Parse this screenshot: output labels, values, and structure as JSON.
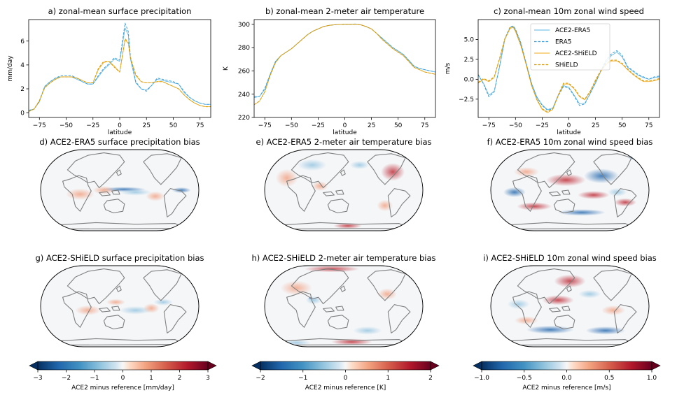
{
  "colors": {
    "ace_era5": "#5ab4e5",
    "era5": "#3aa0dd",
    "ace_shield": "#f0a818",
    "shield": "#d89a00",
    "coast": "#808080"
  },
  "chart_data": [
    {
      "id": "a",
      "type": "line",
      "title": "a) zonal-mean surface precipitation",
      "xlabel": "latitude",
      "ylabel": "mm/day",
      "xlim": [
        -85,
        85
      ],
      "ylim": [
        -0.4,
        7.8
      ],
      "xticks": [
        -75,
        -50,
        -25,
        0,
        25,
        50,
        75
      ],
      "yticks": [
        0,
        2,
        4,
        6
      ],
      "x": [
        -85,
        -80,
        -75,
        -70,
        -65,
        -60,
        -55,
        -50,
        -45,
        -40,
        -35,
        -30,
        -25,
        -20,
        -15,
        -10,
        -5,
        0,
        5,
        8,
        10,
        15,
        20,
        25,
        30,
        35,
        40,
        45,
        50,
        55,
        60,
        65,
        70,
        75,
        80,
        85
      ],
      "series": [
        {
          "name": "ACE2-ERA5",
          "style": "solid",
          "values": [
            0.2,
            0.3,
            0.9,
            2.2,
            2.6,
            2.9,
            3.0,
            3.0,
            3.0,
            2.8,
            2.6,
            2.4,
            2.4,
            3.0,
            3.6,
            4.0,
            4.5,
            4.3,
            7.1,
            6.5,
            4.5,
            2.5,
            2.0,
            1.9,
            2.3,
            2.8,
            2.7,
            2.6,
            2.5,
            2.4,
            1.7,
            1.3,
            1.0,
            0.8,
            0.7,
            0.7
          ]
        },
        {
          "name": "ERA5",
          "style": "dashed",
          "values": [
            0.2,
            0.3,
            1.0,
            2.2,
            2.6,
            2.9,
            3.1,
            3.1,
            3.1,
            2.9,
            2.6,
            2.4,
            2.4,
            3.1,
            3.7,
            4.1,
            4.6,
            4.4,
            7.5,
            6.8,
            4.7,
            2.6,
            2.0,
            1.8,
            2.3,
            2.9,
            2.8,
            2.7,
            2.6,
            2.4,
            1.8,
            1.3,
            1.0,
            0.8,
            0.7,
            0.7
          ]
        },
        {
          "name": "ACE2-SHiELD",
          "style": "solid",
          "values": [
            0.1,
            0.3,
            1.0,
            2.1,
            2.5,
            2.8,
            3.0,
            3.0,
            3.0,
            2.9,
            2.7,
            2.5,
            2.5,
            3.6,
            4.2,
            4.3,
            3.9,
            3.4,
            6.1,
            5.8,
            4.6,
            3.1,
            2.6,
            2.5,
            2.5,
            2.6,
            2.6,
            2.4,
            2.2,
            2.0,
            1.5,
            1.1,
            0.8,
            0.6,
            0.5,
            0.5
          ]
        },
        {
          "name": "SHiELD",
          "style": "dashed",
          "values": [
            0.1,
            0.3,
            1.0,
            2.1,
            2.5,
            2.8,
            3.0,
            3.0,
            3.0,
            2.9,
            2.7,
            2.5,
            2.5,
            3.7,
            4.3,
            4.3,
            3.8,
            3.4,
            6.2,
            5.9,
            4.6,
            3.2,
            2.6,
            2.5,
            2.5,
            2.6,
            2.6,
            2.4,
            2.2,
            2.0,
            1.5,
            1.1,
            0.8,
            0.6,
            0.5,
            0.5
          ]
        }
      ]
    },
    {
      "id": "b",
      "type": "line",
      "title": "b) zonal-mean 2-meter air temperature",
      "xlabel": "latitude",
      "ylabel": "K",
      "xlim": [
        -85,
        85
      ],
      "ylim": [
        220,
        304
      ],
      "xticks": [
        -75,
        -50,
        -25,
        0,
        25,
        50,
        75
      ],
      "yticks": [
        220,
        240,
        260,
        280,
        300
      ],
      "x": [
        -85,
        -80,
        -75,
        -70,
        -65,
        -60,
        -55,
        -50,
        -45,
        -40,
        -35,
        -30,
        -25,
        -20,
        -15,
        -10,
        -5,
        0,
        5,
        10,
        15,
        20,
        25,
        30,
        35,
        40,
        45,
        50,
        55,
        60,
        65,
        70,
        75,
        80,
        85
      ],
      "series": [
        {
          "name": "ACE2-ERA5",
          "style": "solid",
          "values": [
            237,
            238,
            244,
            257,
            268,
            273,
            276,
            279,
            283,
            287,
            291,
            294,
            296,
            298,
            299,
            299.5,
            299.8,
            300,
            300,
            300,
            299.5,
            298,
            296,
            292,
            288,
            284,
            280,
            277,
            274,
            269,
            264,
            262,
            261,
            260,
            259
          ]
        },
        {
          "name": "ERA5",
          "style": "dashed",
          "values": [
            238,
            238,
            245,
            257,
            268,
            273,
            276,
            279,
            283,
            287,
            291,
            294,
            296,
            298,
            299,
            299.5,
            299.8,
            300,
            300,
            300.2,
            299.5,
            298,
            296,
            292,
            288,
            284,
            280,
            277,
            274,
            269,
            264,
            262,
            261,
            260,
            259
          ]
        },
        {
          "name": "ACE2-SHiELD",
          "style": "solid",
          "values": [
            231,
            234,
            242,
            256,
            267,
            273,
            276,
            279,
            283,
            287,
            291,
            294,
            296,
            298,
            299,
            299.5,
            299.8,
            300,
            300,
            300,
            299.5,
            298,
            296,
            292,
            287,
            283,
            279,
            276,
            273,
            268,
            263,
            261,
            259,
            258,
            257
          ]
        },
        {
          "name": "SHiELD",
          "style": "dashed",
          "values": [
            231,
            234,
            242,
            256,
            267,
            273,
            276,
            279,
            283,
            287,
            291,
            294,
            296,
            298,
            299,
            299.5,
            299.8,
            300,
            300,
            300,
            299.5,
            298,
            296,
            292,
            287,
            283,
            279,
            276,
            273,
            268,
            263,
            261,
            259,
            258,
            257
          ]
        }
      ]
    },
    {
      "id": "c",
      "type": "line",
      "title": "c) zonal-mean 10m zonal wind speed",
      "xlabel": "latitude",
      "ylabel": "m/s",
      "xlim": [
        -85,
        85
      ],
      "ylim": [
        -4.8,
        7.5
      ],
      "xticks": [
        -75,
        -50,
        -25,
        0,
        25,
        50,
        75
      ],
      "yticks": [
        -2.5,
        0.0,
        2.5,
        5.0
      ],
      "ytick_labels": [
        "−2.5",
        "0.0",
        "2.5",
        "5.0"
      ],
      "legend": "upper-right",
      "x": [
        -85,
        -80,
        -75,
        -70,
        -65,
        -60,
        -55,
        -52,
        -50,
        -45,
        -40,
        -35,
        -30,
        -25,
        -20,
        -15,
        -10,
        -5,
        0,
        5,
        10,
        15,
        20,
        25,
        30,
        35,
        40,
        45,
        50,
        55,
        60,
        65,
        70,
        75,
        80,
        85
      ],
      "series": [
        {
          "name": "ACE2-ERA5",
          "style": "solid",
          "values": [
            0.5,
            -0.5,
            -2.0,
            -1.5,
            1.5,
            5.0,
            6.5,
            6.6,
            6.2,
            4.5,
            2.0,
            -0.5,
            -2.2,
            -3.2,
            -3.8,
            -3.6,
            -2.0,
            -0.8,
            -1.0,
            -2.0,
            -3.1,
            -3.0,
            -1.8,
            -0.5,
            1.0,
            2.2,
            3.0,
            3.4,
            2.8,
            1.5,
            1.0,
            0.5,
            0.2,
            0.0,
            0.2,
            0.3
          ]
        },
        {
          "name": "ERA5",
          "style": "dashed",
          "values": [
            0.6,
            -0.6,
            -2.2,
            -1.6,
            1.6,
            5.1,
            6.6,
            6.7,
            6.3,
            4.6,
            2.0,
            -0.5,
            -2.3,
            -3.3,
            -3.9,
            -3.7,
            -2.1,
            -0.9,
            -1.1,
            -2.1,
            -3.3,
            -3.1,
            -1.8,
            -0.4,
            1.1,
            2.4,
            3.2,
            3.6,
            3.0,
            1.6,
            1.1,
            0.6,
            0.3,
            0.0,
            0.3,
            0.4
          ]
        },
        {
          "name": "ACE2-SHiELD",
          "style": "solid",
          "values": [
            -0.5,
            0.0,
            -0.3,
            0.2,
            2.5,
            5.0,
            6.4,
            6.5,
            6.0,
            4.2,
            1.8,
            -0.8,
            -2.6,
            -3.8,
            -4.2,
            -3.8,
            -2.1,
            -0.6,
            -0.6,
            -1.2,
            -2.2,
            -2.6,
            -1.6,
            -0.2,
            1.0,
            1.9,
            2.3,
            2.3,
            1.9,
            1.2,
            0.6,
            0.1,
            -0.3,
            -0.3,
            -0.2,
            0.0
          ]
        },
        {
          "name": "SHiELD",
          "style": "dashed",
          "values": [
            -0.4,
            0.1,
            -0.2,
            0.3,
            2.6,
            5.1,
            6.5,
            6.6,
            6.1,
            4.3,
            1.9,
            -0.7,
            -2.5,
            -3.7,
            -4.1,
            -3.7,
            -2.0,
            -0.5,
            -0.5,
            -1.1,
            -2.1,
            -2.5,
            -1.5,
            -0.1,
            1.1,
            2.0,
            2.4,
            2.4,
            2.0,
            1.3,
            0.7,
            0.2,
            -0.2,
            -0.2,
            -0.1,
            0.1
          ]
        }
      ]
    },
    {
      "id": "d",
      "type": "heatmap",
      "title": "d) ACE2-ERA5 surface precipitation bias",
      "colorscale": "RdBu_r"
    },
    {
      "id": "e",
      "type": "heatmap",
      "title": "e) ACE2-ERA5 2-meter air temperature bias",
      "colorscale": "RdBu_r"
    },
    {
      "id": "f",
      "type": "heatmap",
      "title": "f) ACE2-ERA5 10m zonal wind speed bias",
      "colorscale": "RdBu_r"
    },
    {
      "id": "g",
      "type": "heatmap",
      "title": "g) ACE2-SHiELD surface precipitation bias",
      "colorscale": "RdBu_r"
    },
    {
      "id": "h",
      "type": "heatmap",
      "title": "h) ACE2-SHiELD 2-meter air temperature bias",
      "colorscale": "RdBu_r"
    },
    {
      "id": "i",
      "type": "heatmap",
      "title": "i) ACE2-SHiELD 10m zonal wind speed bias",
      "colorscale": "RdBu_r"
    },
    {
      "id": "cb1",
      "type": "colorbar",
      "label": "ACE2 minus reference [mm/day]",
      "range": [
        -3,
        3
      ],
      "ticks": [
        -3,
        -2,
        -1,
        0,
        1,
        2,
        3
      ],
      "tick_labels": [
        "−3",
        "−2",
        "−1",
        "0",
        "1",
        "2",
        "3"
      ]
    },
    {
      "id": "cb2",
      "type": "colorbar",
      "label": "ACE2 minus reference [K]",
      "range": [
        -2,
        2
      ],
      "ticks": [
        -2,
        -1,
        0,
        1,
        2
      ],
      "tick_labels": [
        "−2",
        "−1",
        "0",
        "1",
        "2"
      ]
    },
    {
      "id": "cb3",
      "type": "colorbar",
      "label": "ACE2 minus reference [m/s]",
      "range": [
        -1,
        1
      ],
      "ticks": [
        -1.0,
        -0.5,
        0.0,
        0.5,
        1.0
      ],
      "tick_labels": [
        "−1.0",
        "−0.5",
        "0.0",
        "0.5",
        "1.0"
      ]
    }
  ]
}
